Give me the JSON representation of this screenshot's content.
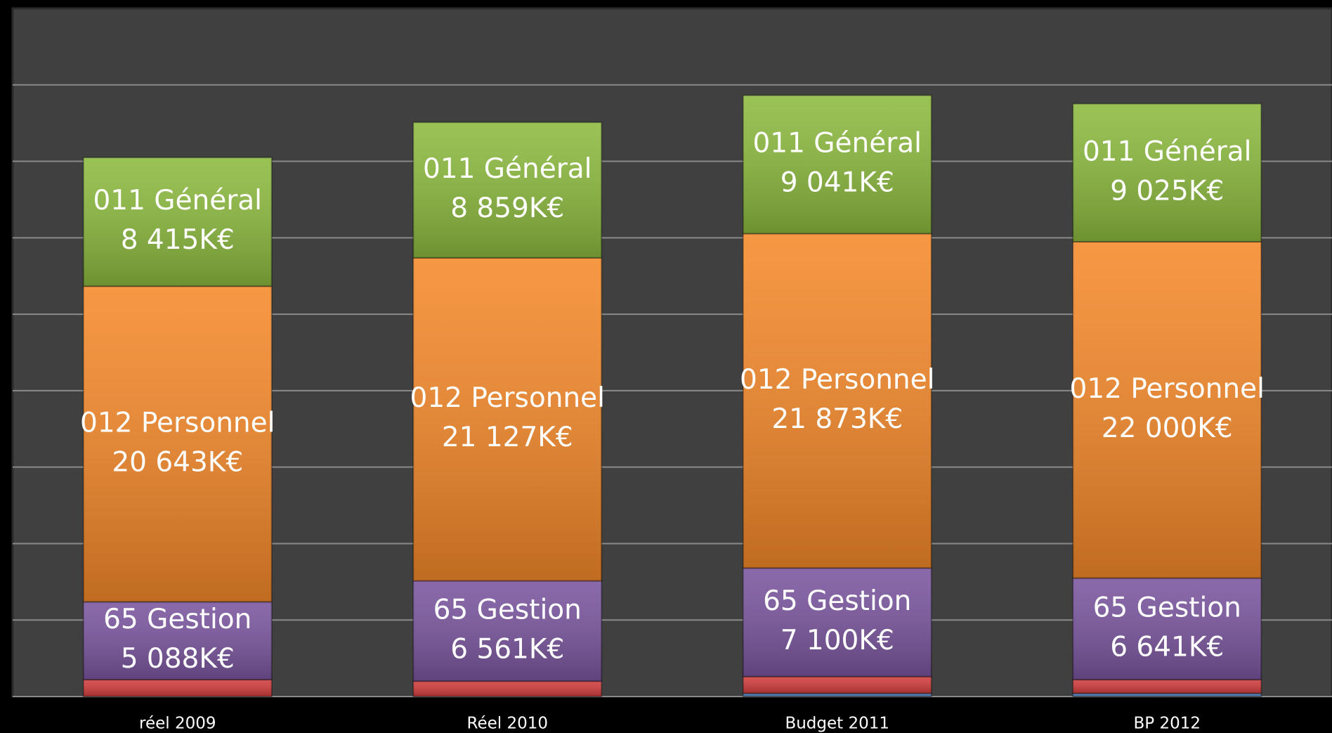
{
  "chart_data": {
    "type": "stacked_bar",
    "categories": [
      "réel 2009",
      "Réel 2010",
      "Budget 2011",
      "BP 2012"
    ],
    "series": [
      {
        "color": "#4f81bd",
        "values": [
          null,
          null,
          200,
          200
        ]
      },
      {
        "color": "#d23c3c",
        "values": [
          1100,
          1000,
          1100,
          900
        ]
      },
      {
        "name": "65 Gestion",
        "color": "#7a559e",
        "values": [
          5088,
          6561,
          7100,
          6641
        ],
        "value_labels": [
          "5 088K€",
          "6 561K€",
          "7 100K€",
          "6 641K€"
        ]
      },
      {
        "name": "012 Personnel",
        "color": "#f5892a",
        "values": [
          20643,
          21127,
          21873,
          22000
        ],
        "value_labels": [
          "20 643K€",
          "21 127K€",
          "21 873K€",
          "22 000K€"
        ]
      },
      {
        "name": "011 Général",
        "color": "#8cba3e",
        "values": [
          8415,
          8859,
          9041,
          9025
        ],
        "value_labels": [
          "8 415K€",
          "8 859K€",
          "9 041K€",
          "9 025K€"
        ]
      }
    ],
    "ylim": [
      0,
      45000
    ],
    "yticks": [
      0,
      5000,
      10000,
      15000,
      20000,
      25000,
      30000,
      35000,
      40000
    ],
    "grid": true
  }
}
